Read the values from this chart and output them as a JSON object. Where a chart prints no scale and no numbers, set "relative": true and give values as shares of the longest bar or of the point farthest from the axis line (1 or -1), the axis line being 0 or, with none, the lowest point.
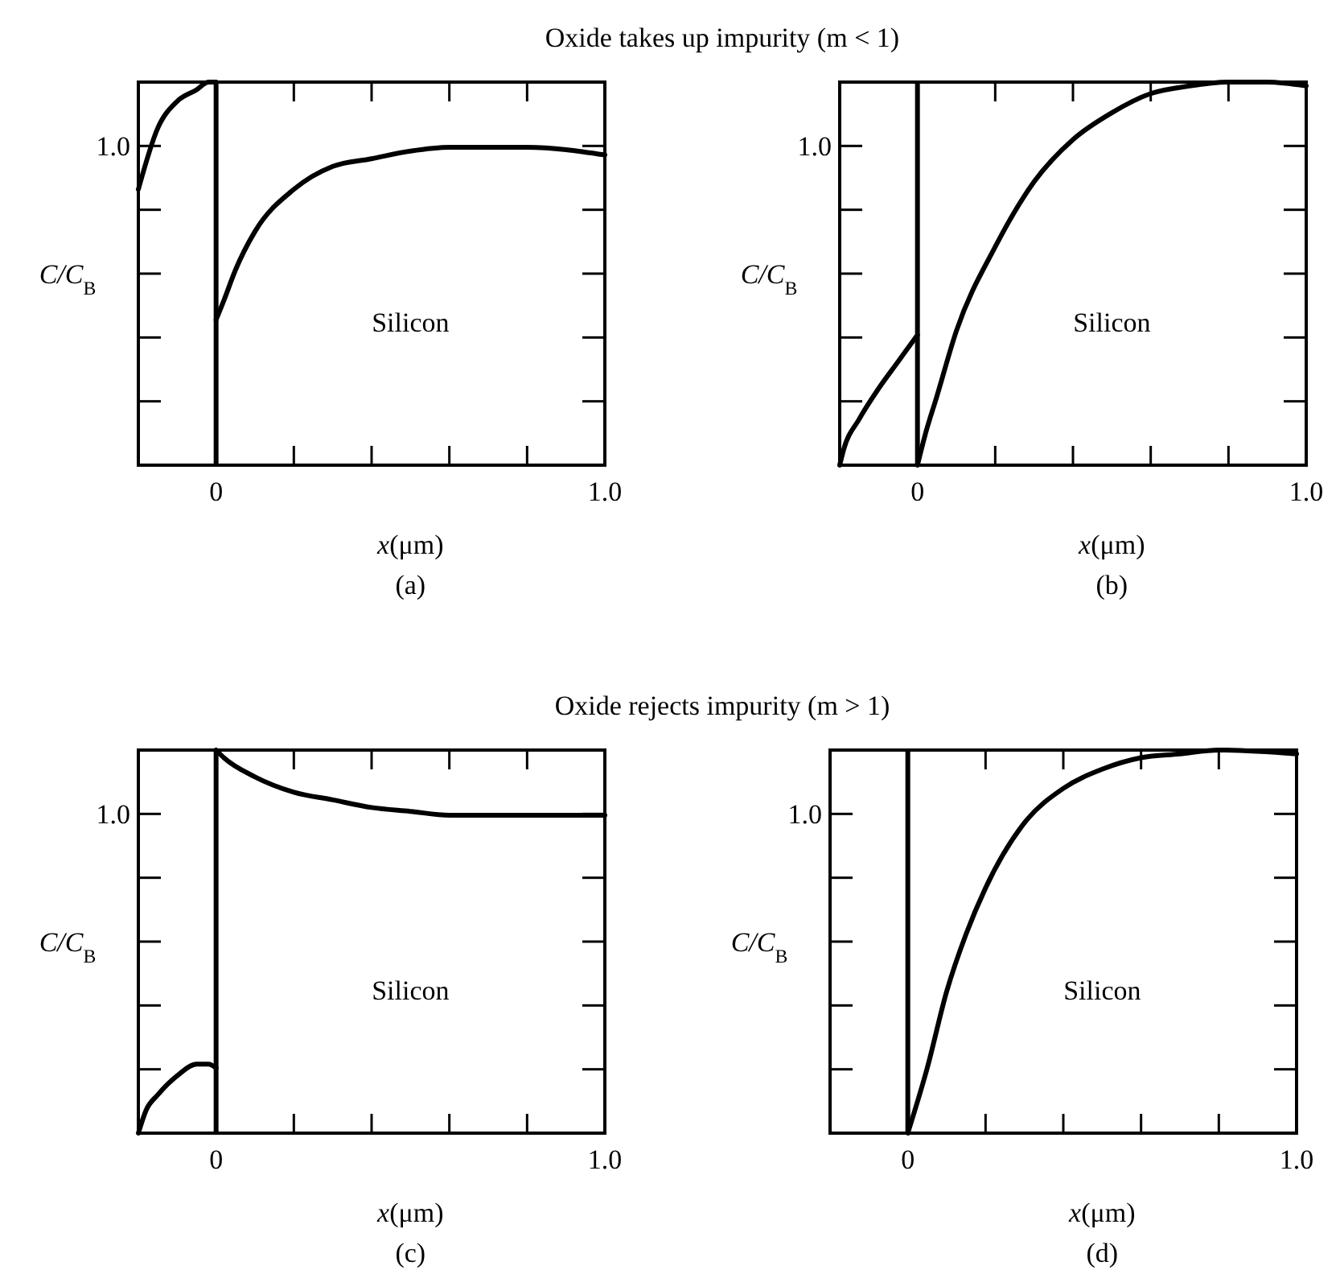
{
  "chart_data": [
    {
      "type": "line",
      "relative": true,
      "title": "Oxide takes up impurity (m < 1)",
      "xlabel": "x(μm)",
      "ylabel": "C/C$_{B}$",
      "annotations": [
        "Silicon",
        "(a)",
        "1.0"
      ],
      "xlim": [
        -0.2,
        1.0
      ],
      "xticks": [
        {
          "value": 0,
          "label": "0"
        },
        {
          "value": 0.2,
          "label": null
        },
        {
          "value": 0.4,
          "label": null
        },
        {
          "value": 0.6,
          "label": null
        },
        {
          "value": 0.8,
          "label": null
        },
        {
          "value": 1,
          "label": "1.0"
        }
      ],
      "marker": "none",
      "line_style": "solid",
      "ref_lines": [
        {
          "axis": "x",
          "value": 0,
          "color": "#000000"
        }
      ],
      "series": [
        {
          "color": "#000000",
          "x": [
            -0.2,
            -0.15,
            -0.1,
            -0.05,
            -0.02,
            0
          ],
          "values": [
            0.72,
            0.88,
            0.95,
            0.98,
            1,
            1
          ]
        },
        {
          "color": "#000000",
          "x": [
            0,
            0.02,
            0.05,
            0.1,
            0.2,
            0.3,
            0.4,
            0.5,
            0.6,
            0.7,
            0.8,
            1.0
          ],
          "values": [
            0.38,
            0.43,
            0.51,
            0.61,
            0.72,
            0.78,
            0.8,
            0.82,
            0.83,
            0.83,
            0.83,
            0.81
          ]
        }
      ]
    },
    {
      "type": "line",
      "relative": true,
      "xlabel": "x(μm)",
      "ylabel": "C/C$_{B}$",
      "annotations": [
        "Silicon",
        "(b)",
        "1.0"
      ],
      "xlim": [
        -0.2,
        1.0
      ],
      "xticks": [
        {
          "value": 0,
          "label": "0"
        },
        {
          "value": 0.2,
          "label": null
        },
        {
          "value": 0.4,
          "label": null
        },
        {
          "value": 0.6,
          "label": null
        },
        {
          "value": 0.8,
          "label": null
        },
        {
          "value": 1,
          "label": "1.0"
        }
      ],
      "marker": "none",
      "line_style": "solid",
      "ref_lines": [
        {
          "axis": "x",
          "value": 0,
          "color": "#000000"
        }
      ],
      "series": [
        {
          "color": "#000000",
          "x": [
            -0.2,
            -0.19,
            -0.15,
            -0.1,
            -0.05,
            0
          ],
          "values": [
            0,
            0.04,
            0.12,
            0.2,
            0.27,
            0.34
          ]
        },
        {
          "color": "#000000",
          "x": [
            0,
            0.02,
            0.05,
            0.1,
            0.2,
            0.3,
            0.4,
            0.5,
            0.6,
            0.7,
            0.8,
            0.9,
            1.0
          ],
          "values": [
            0,
            0.08,
            0.18,
            0.35,
            0.57,
            0.74,
            0.85,
            0.92,
            0.97,
            0.99,
            1.0,
            1.0,
            0.99
          ]
        }
      ]
    },
    {
      "type": "line",
      "relative": true,
      "title": "Oxide rejects impurity (m > 1)",
      "xlabel": "x(μm)",
      "ylabel": "C/C$_{B}$",
      "annotations": [
        "Silicon",
        "(c)",
        "1.0"
      ],
      "xlim": [
        -0.2,
        1.0
      ],
      "xticks": [
        {
          "value": 0,
          "label": "0"
        },
        {
          "value": 0.2,
          "label": null
        },
        {
          "value": 0.4,
          "label": null
        },
        {
          "value": 0.6,
          "label": null
        },
        {
          "value": 0.8,
          "label": null
        },
        {
          "value": 1,
          "label": "1.0"
        }
      ],
      "marker": "none",
      "line_style": "solid",
      "ref_lines": [
        {
          "axis": "x",
          "value": 0,
          "color": "#000000"
        }
      ],
      "series": [
        {
          "color": "#000000",
          "x": [
            -0.2,
            -0.18,
            -0.15,
            -0.1,
            -0.05,
            -0.02,
            0
          ],
          "values": [
            0,
            0.06,
            0.1,
            0.15,
            0.18,
            0.18,
            0.17
          ]
        },
        {
          "color": "#000000",
          "x": [
            0,
            0.02,
            0.1,
            0.2,
            0.3,
            0.4,
            0.5,
            0.6,
            0.8,
            1.0
          ],
          "values": [
            1,
            0.98,
            0.93,
            0.89,
            0.87,
            0.85,
            0.84,
            0.83,
            0.83,
            0.83
          ]
        }
      ]
    },
    {
      "type": "line",
      "relative": true,
      "xlabel": "x(μm)",
      "ylabel": "C/C$_{B}$",
      "annotations": [
        "Silicon",
        "(d)",
        "1.0"
      ],
      "xlim": [
        -0.2,
        1.0
      ],
      "xticks": [
        {
          "value": 0,
          "label": "0"
        },
        {
          "value": 0.2,
          "label": null
        },
        {
          "value": 0.4,
          "label": null
        },
        {
          "value": 0.6,
          "label": null
        },
        {
          "value": 0.8,
          "label": null
        },
        {
          "value": 1,
          "label": "1.0"
        }
      ],
      "marker": "none",
      "line_style": "solid",
      "ref_lines": [
        {
          "axis": "x",
          "value": 0,
          "color": "#000000"
        }
      ],
      "series": [
        {
          "color": "#000000",
          "x": [
            0,
            0.05,
            0.1,
            0.15,
            0.2,
            0.3,
            0.4,
            0.5,
            0.6,
            0.7,
            0.8,
            1.0
          ],
          "values": [
            0,
            0.17,
            0.37,
            0.52,
            0.64,
            0.81,
            0.9,
            0.95,
            0.98,
            0.99,
            1,
            0.99
          ]
        }
      ]
    }
  ]
}
